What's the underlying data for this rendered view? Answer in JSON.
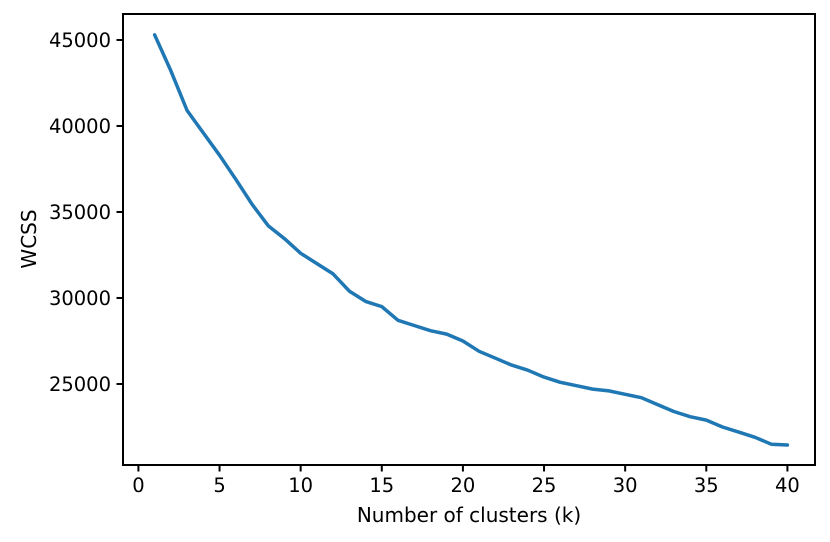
{
  "figure": {
    "background": "#ffffff"
  },
  "chart_data": {
    "type": "line",
    "title": "",
    "xlabel": "Number of clusters (k)",
    "ylabel": "WCSS",
    "line_color": "#1f77b4",
    "line_width": 3.5,
    "grid": false,
    "legend_position": "none",
    "marker": "none",
    "xlim": [
      -0.95,
      41.7
    ],
    "ylim": [
      20290,
      46510
    ],
    "x_ticks": [
      0,
      5,
      10,
      15,
      20,
      25,
      30,
      35,
      40
    ],
    "y_ticks": [
      25000,
      30000,
      35000,
      40000,
      45000
    ],
    "x": [
      1,
      2,
      3,
      4,
      5,
      6,
      7,
      8,
      9,
      10,
      11,
      12,
      13,
      14,
      15,
      16,
      17,
      18,
      19,
      20,
      21,
      22,
      23,
      24,
      25,
      26,
      27,
      28,
      29,
      30,
      31,
      32,
      33,
      34,
      35,
      36,
      37,
      38,
      39,
      40
    ],
    "y": [
      45300,
      43200,
      40900,
      39600,
      38300,
      36900,
      35450,
      34200,
      33450,
      32600,
      32000,
      31400,
      30400,
      29800,
      29500,
      28700,
      28400,
      28100,
      27900,
      27500,
      26900,
      26500,
      26100,
      25800,
      25400,
      25100,
      24900,
      24700,
      24600,
      24400,
      24200,
      23800,
      23400,
      23100,
      22900,
      22500,
      22200,
      21900,
      21500,
      21450
    ]
  }
}
